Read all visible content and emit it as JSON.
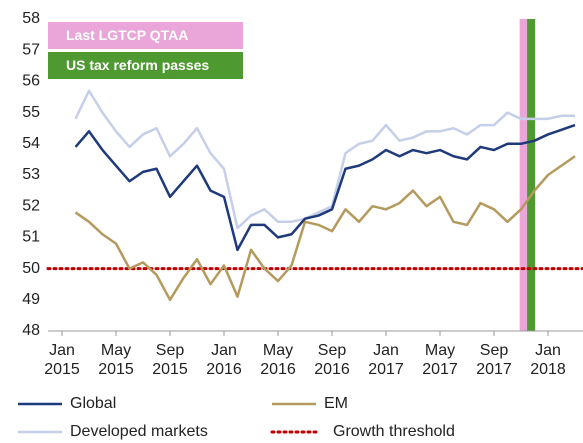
{
  "chart_data": {
    "type": "line",
    "categories": [
      "Jan 2015",
      null,
      null,
      null,
      "May 2015",
      null,
      null,
      null,
      "Sep 2015",
      null,
      null,
      null,
      "Jan 2016",
      null,
      null,
      null,
      "May 2016",
      null,
      null,
      null,
      "Sep 2016",
      null,
      null,
      null,
      "Jan 2017",
      null,
      null,
      null,
      "May 2017",
      null,
      null,
      null,
      "Sep 2017",
      null,
      null,
      null,
      "Jan 2018",
      null,
      null
    ],
    "series": [
      {
        "name": "Global",
        "color": "#1f3a7a",
        "values": [
          null,
          53.9,
          54.4,
          53.8,
          53.3,
          52.8,
          53.1,
          53.2,
          52.3,
          52.8,
          53.3,
          52.5,
          52.3,
          50.6,
          51.4,
          51.4,
          51.0,
          51.1,
          51.6,
          51.7,
          51.9,
          53.2,
          53.3,
          53.5,
          53.8,
          53.6,
          53.8,
          53.7,
          53.8,
          53.6,
          53.5,
          53.9,
          53.8,
          54.0,
          54.0,
          54.1,
          54.3,
          54.45,
          54.6
        ]
      },
      {
        "name": "EM",
        "color": "#b59a5e",
        "values": [
          null,
          51.8,
          51.5,
          51.1,
          50.8,
          50.0,
          50.2,
          49.8,
          49.0,
          49.7,
          50.3,
          49.5,
          50.1,
          49.1,
          50.6,
          50.0,
          49.6,
          50.1,
          51.5,
          51.4,
          51.2,
          51.9,
          51.5,
          52.0,
          51.9,
          52.1,
          52.5,
          52.0,
          52.3,
          51.5,
          51.4,
          52.1,
          51.9,
          51.5,
          51.9,
          52.5,
          53.0,
          53.3,
          53.6
        ]
      },
      {
        "name": "Developed markets",
        "color": "#c5cfe9",
        "values": [
          null,
          54.8,
          55.7,
          55.0,
          54.4,
          53.9,
          54.3,
          54.5,
          53.6,
          54.0,
          54.5,
          53.7,
          53.2,
          51.3,
          51.7,
          51.9,
          51.5,
          51.5,
          51.6,
          51.8,
          52.0,
          53.7,
          54.0,
          54.1,
          54.6,
          54.1,
          54.2,
          54.4,
          54.4,
          54.5,
          54.3,
          54.6,
          54.6,
          55.0,
          54.8,
          54.8,
          54.8,
          54.9,
          54.9
        ]
      }
    ],
    "reference_lines": [
      {
        "name": "Growth threshold",
        "value": 50,
        "color": "#c00000"
      }
    ],
    "annotations": [
      {
        "text": "Last LGTCP QTAA",
        "color": "#eaa6d8",
        "at": 34
      },
      {
        "text": "US tax reform passes",
        "color": "#4e9a31",
        "at": 35
      }
    ],
    "ylim": [
      48,
      58
    ],
    "yticks": [
      48,
      49,
      50,
      51,
      52,
      53,
      54,
      55,
      56,
      57,
      58
    ]
  }
}
